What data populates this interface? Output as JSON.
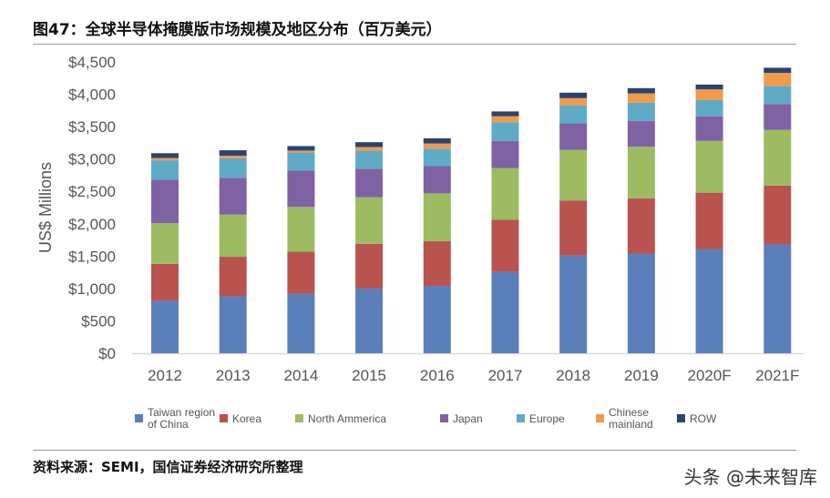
{
  "title": "图47：全球半导体掩膜版市场规模及地区分布（百万美元）",
  "source": "资料来源：SEMI，国信证券经济研究所整理",
  "watermark": "头条 @未来智库",
  "chart_data": {
    "type": "bar",
    "stacked": true,
    "title": "",
    "xlabel": "",
    "ylabel": "US$ Millions",
    "ylim": [
      0,
      4500
    ],
    "yticks": [
      0,
      500,
      1000,
      1500,
      2000,
      2500,
      3000,
      3500,
      4000,
      4500
    ],
    "ytick_labels": [
      "$0",
      "$500",
      "$1,000",
      "$1,500",
      "$2,000",
      "$2,500",
      "$3,000",
      "$3,500",
      "$4,000",
      "$4,500"
    ],
    "grid": false,
    "legend_position": "bottom",
    "categories": [
      "2012",
      "2013",
      "2014",
      "2015",
      "2016",
      "2017",
      "2018",
      "2019",
      "2020F",
      "2021F"
    ],
    "series": [
      {
        "name": "Taiwan region of China",
        "legend_lines": [
          "Taiwan  region",
          "of China"
        ],
        "color": "#5b7fba",
        "values": [
          810,
          880,
          920,
          1000,
          1040,
          1260,
          1510,
          1540,
          1610,
          1680
        ]
      },
      {
        "name": "Korea",
        "legend_lines": [
          "Korea"
        ],
        "color": "#b9534f",
        "values": [
          570,
          610,
          650,
          690,
          690,
          800,
          850,
          850,
          870,
          910
        ]
      },
      {
        "name": "North Ammerica",
        "legend_lines": [
          "North Ammerica"
        ],
        "color": "#9dbb61",
        "values": [
          630,
          650,
          690,
          720,
          740,
          800,
          780,
          800,
          800,
          860
        ]
      },
      {
        "name": "Japan",
        "legend_lines": [
          "Japan"
        ],
        "color": "#7f62a3",
        "values": [
          670,
          570,
          560,
          440,
          420,
          420,
          410,
          400,
          380,
          400
        ]
      },
      {
        "name": "Europe",
        "legend_lines": [
          "Europe"
        ],
        "color": "#5fabc6",
        "values": [
          300,
          300,
          280,
          280,
          270,
          290,
          280,
          280,
          250,
          280
        ]
      },
      {
        "name": "Chinese mainland",
        "legend_lines": [
          "Chinese",
          "mainland"
        ],
        "color": "#f19a4c",
        "values": [
          35,
          40,
          30,
          55,
          80,
          90,
          110,
          145,
          165,
          200
        ]
      },
      {
        "name": "ROW",
        "legend_lines": [
          "ROW"
        ],
        "color": "#2a4470",
        "values": [
          75,
          85,
          70,
          75,
          80,
          75,
          85,
          80,
          75,
          80
        ]
      }
    ]
  }
}
